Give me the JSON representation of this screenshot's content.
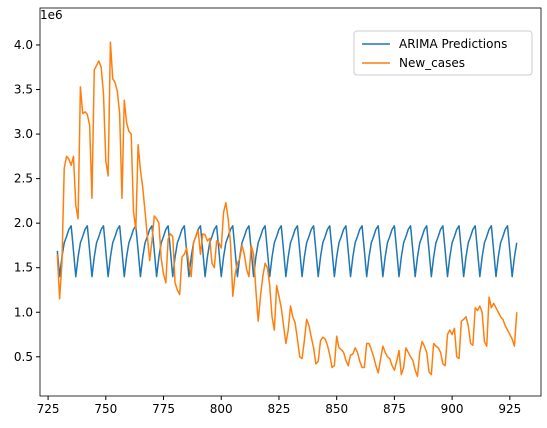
{
  "chart_data": {
    "type": "line",
    "offset_text": "1e6",
    "legend": "upper right",
    "x": [
      729,
      730,
      731,
      732,
      733,
      734,
      735,
      736,
      737,
      738,
      739,
      740,
      741,
      742,
      743,
      744,
      745,
      746,
      747,
      748,
      749,
      750,
      751,
      752,
      753,
      754,
      755,
      756,
      757,
      758,
      759,
      760,
      761,
      762,
      763,
      764,
      765,
      766,
      767,
      768,
      769,
      770,
      771,
      772,
      773,
      774,
      775,
      776,
      777,
      778,
      779,
      780,
      781,
      782,
      783,
      784,
      785,
      786,
      787,
      788,
      789,
      790,
      791,
      792,
      793,
      794,
      795,
      796,
      797,
      798,
      799,
      800,
      801,
      802,
      803,
      804,
      805,
      806,
      807,
      808,
      809,
      810,
      811,
      812,
      813,
      814,
      815,
      816,
      817,
      818,
      819,
      820,
      821,
      822,
      823,
      824,
      825,
      826,
      827,
      828,
      829,
      830,
      831,
      832,
      833,
      834,
      835,
      836,
      837,
      838,
      839,
      840,
      841,
      842,
      843,
      844,
      845,
      846,
      847,
      848,
      849,
      850,
      851,
      852,
      853,
      854,
      855,
      856,
      857,
      858,
      859,
      860,
      861,
      862,
      863,
      864,
      865,
      866,
      867,
      868,
      869,
      870,
      871,
      872,
      873,
      874,
      875,
      876,
      877,
      878,
      879,
      880,
      881,
      882,
      883,
      884,
      885,
      886,
      887,
      888,
      889,
      890,
      891,
      892,
      893,
      894,
      895,
      896,
      897,
      898,
      899,
      900,
      901,
      902,
      903,
      904,
      905,
      906,
      907,
      908,
      909,
      910,
      911,
      912,
      913,
      914,
      915,
      916,
      917,
      918,
      919,
      920,
      921,
      922,
      923,
      924,
      925,
      926,
      927,
      928
    ],
    "series": [
      {
        "name": "ARIMA Predictions",
        "color": "#1f77b4",
        "values": [
          1.69,
          1.4,
          1.62,
          1.78,
          1.85,
          1.93,
          1.97,
          1.69,
          1.4,
          1.62,
          1.78,
          1.85,
          1.93,
          1.97,
          1.69,
          1.4,
          1.62,
          1.78,
          1.85,
          1.93,
          1.97,
          1.69,
          1.4,
          1.62,
          1.78,
          1.85,
          1.93,
          1.97,
          1.69,
          1.4,
          1.62,
          1.78,
          1.85,
          1.93,
          1.97,
          1.69,
          1.4,
          1.62,
          1.78,
          1.85,
          1.93,
          1.97,
          1.69,
          1.4,
          1.62,
          1.78,
          1.85,
          1.93,
          1.97,
          1.69,
          1.4,
          1.62,
          1.78,
          1.85,
          1.93,
          1.97,
          1.69,
          1.4,
          1.62,
          1.78,
          1.85,
          1.93,
          1.97,
          1.69,
          1.4,
          1.62,
          1.78,
          1.85,
          1.93,
          1.97,
          1.69,
          1.4,
          1.62,
          1.78,
          1.85,
          1.93,
          1.97,
          1.69,
          1.4,
          1.62,
          1.78,
          1.85,
          1.93,
          1.97,
          1.69,
          1.4,
          1.62,
          1.78,
          1.85,
          1.93,
          1.97,
          1.69,
          1.4,
          1.62,
          1.78,
          1.85,
          1.93,
          1.97,
          1.69,
          1.4,
          1.62,
          1.78,
          1.85,
          1.93,
          1.97,
          1.69,
          1.4,
          1.62,
          1.78,
          1.85,
          1.93,
          1.97,
          1.69,
          1.4,
          1.62,
          1.78,
          1.85,
          1.93,
          1.97,
          1.69,
          1.4,
          1.62,
          1.78,
          1.85,
          1.93,
          1.97,
          1.69,
          1.4,
          1.62,
          1.78,
          1.85,
          1.93,
          1.97,
          1.69,
          1.4,
          1.62,
          1.78,
          1.85,
          1.93,
          1.97,
          1.69,
          1.4,
          1.62,
          1.78,
          1.85,
          1.93,
          1.97,
          1.69,
          1.4,
          1.62,
          1.78,
          1.85,
          1.93,
          1.97,
          1.69,
          1.4,
          1.62,
          1.78,
          1.85,
          1.93,
          1.97,
          1.69,
          1.4,
          1.62,
          1.78,
          1.85,
          1.93,
          1.97,
          1.69,
          1.4,
          1.62,
          1.78,
          1.85,
          1.93,
          1.97,
          1.69,
          1.4,
          1.62,
          1.78,
          1.85,
          1.93,
          1.97,
          1.69,
          1.4,
          1.62,
          1.78,
          1.85,
          1.93,
          1.97,
          1.69,
          1.4,
          1.62,
          1.78,
          1.85,
          1.93,
          1.97,
          1.69,
          1.4,
          1.62,
          1.78
        ]
      },
      {
        "name": "New_cases",
        "color": "#ff7f0e",
        "values": [
          1.65,
          1.15,
          1.55,
          2.62,
          2.75,
          2.72,
          2.65,
          2.75,
          2.2,
          2.05,
          3.53,
          3.23,
          3.25,
          3.22,
          3.1,
          2.28,
          3.72,
          3.77,
          3.82,
          3.75,
          3.45,
          2.7,
          2.53,
          4.03,
          3.62,
          3.58,
          3.48,
          3.23,
          2.28,
          3.38,
          3.13,
          3.03,
          3.0,
          2.13,
          1.93,
          2.88,
          2.6,
          2.4,
          2.13,
          1.85,
          1.58,
          1.8,
          2.08,
          2.05,
          2.0,
          1.6,
          1.43,
          1.33,
          1.82,
          1.88,
          1.85,
          1.33,
          1.25,
          1.2,
          1.62,
          1.65,
          1.72,
          1.55,
          1.4,
          1.78,
          1.85,
          1.92,
          1.65,
          1.88,
          1.87,
          1.8,
          1.83,
          1.55,
          1.5,
          1.8,
          1.78,
          1.72,
          2.12,
          2.23,
          2.05,
          1.78,
          1.18,
          1.42,
          1.55,
          1.6,
          1.75,
          1.65,
          1.48,
          1.4,
          1.75,
          1.65,
          1.25,
          0.9,
          1.18,
          1.4,
          1.55,
          1.5,
          1.3,
          0.95,
          0.8,
          1.3,
          1.18,
          1.05,
          0.85,
          0.65,
          0.8,
          1.07,
          0.95,
          0.88,
          0.7,
          0.5,
          0.48,
          0.68,
          0.92,
          0.85,
          0.72,
          0.6,
          0.42,
          0.45,
          0.68,
          0.72,
          0.7,
          0.63,
          0.52,
          0.38,
          0.4,
          0.73,
          0.6,
          0.58,
          0.55,
          0.46,
          0.4,
          0.52,
          0.53,
          0.6,
          0.55,
          0.45,
          0.38,
          0.38,
          0.65,
          0.65,
          0.58,
          0.5,
          0.4,
          0.32,
          0.47,
          0.62,
          0.55,
          0.5,
          0.48,
          0.4,
          0.35,
          0.45,
          0.57,
          0.3,
          0.38,
          0.6,
          0.55,
          0.5,
          0.46,
          0.35,
          0.28,
          0.55,
          0.67,
          0.62,
          0.55,
          0.33,
          0.3,
          0.65,
          0.62,
          0.6,
          0.55,
          0.42,
          0.4,
          0.75,
          0.8,
          0.75,
          0.82,
          0.5,
          0.48,
          0.9,
          0.92,
          0.95,
          0.85,
          0.65,
          0.63,
          1.05,
          1.02,
          1.07,
          1.0,
          0.67,
          0.62,
          1.17,
          1.05,
          1.1,
          1.05,
          1.0,
          0.95,
          0.92,
          0.85,
          0.8,
          0.75,
          0.7,
          0.62,
          1.0
        ]
      }
    ],
    "xlim": [
      721.5,
      938.5
    ],
    "xticks": [
      725,
      750,
      775,
      800,
      825,
      850,
      875,
      900,
      925
    ],
    "ylim": [
      0.06,
      4.415
    ],
    "yticks": [
      0.5,
      {
        "value": 1,
        "label": "1.0"
      },
      1.5,
      {
        "value": 2,
        "label": "2.0"
      },
      2.5,
      {
        "value": 3,
        "label": "3.0"
      },
      3.5,
      {
        "value": 4,
        "label": "4.0"
      }
    ]
  }
}
